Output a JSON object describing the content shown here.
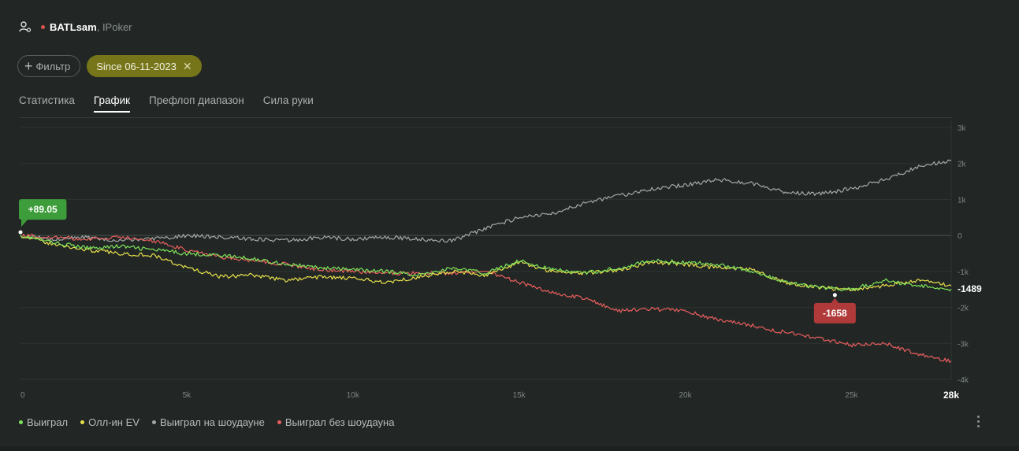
{
  "header": {
    "player": "BATLsam",
    "site": ", IPoker"
  },
  "filters": {
    "add_label": "Фильтр",
    "date_chip": "Since 06-11-2023"
  },
  "tabs": [
    {
      "label": "Статистика",
      "active": false
    },
    {
      "label": "График",
      "active": true
    },
    {
      "label": "Префлоп диапазон",
      "active": false
    },
    {
      "label": "Сила руки",
      "active": false
    }
  ],
  "chart_data": {
    "type": "line",
    "xlim": [
      0,
      28000
    ],
    "ylim": [
      -4000,
      3000
    ],
    "x_ticks": [
      0,
      5000,
      10000,
      15000,
      20000,
      25000
    ],
    "x_tick_labels": [
      "0",
      "5k",
      "10k",
      "15k",
      "20k",
      "25k"
    ],
    "x_end_label": "28k",
    "y_ticks": [
      3000,
      2000,
      1000,
      0,
      -1000,
      -2000,
      -3000,
      -4000
    ],
    "y_tick_labels": [
      "3k",
      "2k",
      "1k",
      "0",
      "-1k",
      "-2k",
      "-3k",
      "-4k"
    ],
    "grid": true,
    "legend_position": "bottom-left",
    "series": [
      {
        "name": "Выиграл",
        "color": "#7de35a",
        "x": [
          0,
          1000,
          2000,
          3000,
          4000,
          5000,
          6000,
          7000,
          8000,
          9000,
          10000,
          11000,
          12000,
          13000,
          14000,
          15000,
          16000,
          17000,
          18000,
          19000,
          20000,
          21000,
          22000,
          23000,
          24000,
          25000,
          26000,
          27000,
          28000
        ],
        "y": [
          0,
          -200,
          -350,
          -300,
          -400,
          -500,
          -550,
          -650,
          -800,
          -900,
          -950,
          -1000,
          -1100,
          -900,
          -1050,
          -700,
          -950,
          -1050,
          -900,
          -700,
          -750,
          -800,
          -1000,
          -1300,
          -1450,
          -1500,
          -1250,
          -1400,
          -1489
        ]
      },
      {
        "name": "Олл-ин EV",
        "color": "#e8e04a",
        "x": [
          0,
          1000,
          2000,
          3000,
          4000,
          5000,
          6000,
          7000,
          8000,
          9000,
          10000,
          11000,
          12000,
          13000,
          14000,
          15000,
          16000,
          17000,
          18000,
          19000,
          20000,
          21000,
          22000,
          23000,
          24000,
          25000,
          26000,
          27000,
          28000
        ],
        "y": [
          0,
          -250,
          -400,
          -500,
          -550,
          -900,
          -1150,
          -1100,
          -1250,
          -1150,
          -1200,
          -1300,
          -1150,
          -1000,
          -1100,
          -750,
          -1000,
          -1050,
          -950,
          -750,
          -800,
          -900,
          -950,
          -1300,
          -1450,
          -1500,
          -1400,
          -1250,
          -1400
        ]
      },
      {
        "name": "Выиграл на шоудауне",
        "color": "#a3a8a5",
        "x": [
          0,
          1000,
          2000,
          3000,
          4000,
          5000,
          6000,
          7000,
          8000,
          9000,
          10000,
          11000,
          12000,
          13000,
          14000,
          15000,
          16000,
          17000,
          18000,
          19000,
          20000,
          21000,
          22000,
          23000,
          24000,
          25000,
          26000,
          27000,
          28000
        ],
        "y": [
          0,
          -100,
          -50,
          -150,
          -100,
          0,
          -50,
          -100,
          -150,
          -50,
          -100,
          -50,
          -100,
          -150,
          200,
          500,
          600,
          900,
          1100,
          1300,
          1400,
          1550,
          1450,
          1200,
          1150,
          1300,
          1550,
          1900,
          2100
        ]
      },
      {
        "name": "Выиграл без шоудауна",
        "color": "#e85d5d",
        "x": [
          0,
          1000,
          2000,
          3000,
          4000,
          5000,
          6000,
          7000,
          8000,
          9000,
          10000,
          11000,
          12000,
          13000,
          14000,
          15000,
          16000,
          17000,
          18000,
          19000,
          20000,
          21000,
          22000,
          23000,
          24000,
          25000,
          26000,
          27000,
          28000
        ],
        "y": [
          0,
          -50,
          -100,
          -50,
          -150,
          -400,
          -600,
          -700,
          -800,
          -950,
          -1000,
          -1050,
          -1050,
          -1050,
          -1000,
          -1300,
          -1600,
          -1750,
          -2100,
          -2050,
          -2100,
          -2350,
          -2500,
          -2700,
          -2850,
          -3050,
          -3000,
          -3300,
          -3489
        ]
      }
    ],
    "annotations": [
      {
        "label": "+89.05",
        "x": 0,
        "y": 89.05,
        "color": "#3e9d3b",
        "placement": "above"
      },
      {
        "label": "-1658",
        "x": 24500,
        "y": -1658,
        "color": "#b03a3a",
        "placement": "below"
      }
    ],
    "end_value_label": "-1489"
  },
  "legend": [
    {
      "label": "Выиграл",
      "color": "#7de35a"
    },
    {
      "label": "Олл-ин EV",
      "color": "#e8e04a"
    },
    {
      "label": "Выиграл на шоудауне",
      "color": "#a3a8a5"
    },
    {
      "label": "Выиграл без шоудауна",
      "color": "#e85d5d"
    }
  ]
}
